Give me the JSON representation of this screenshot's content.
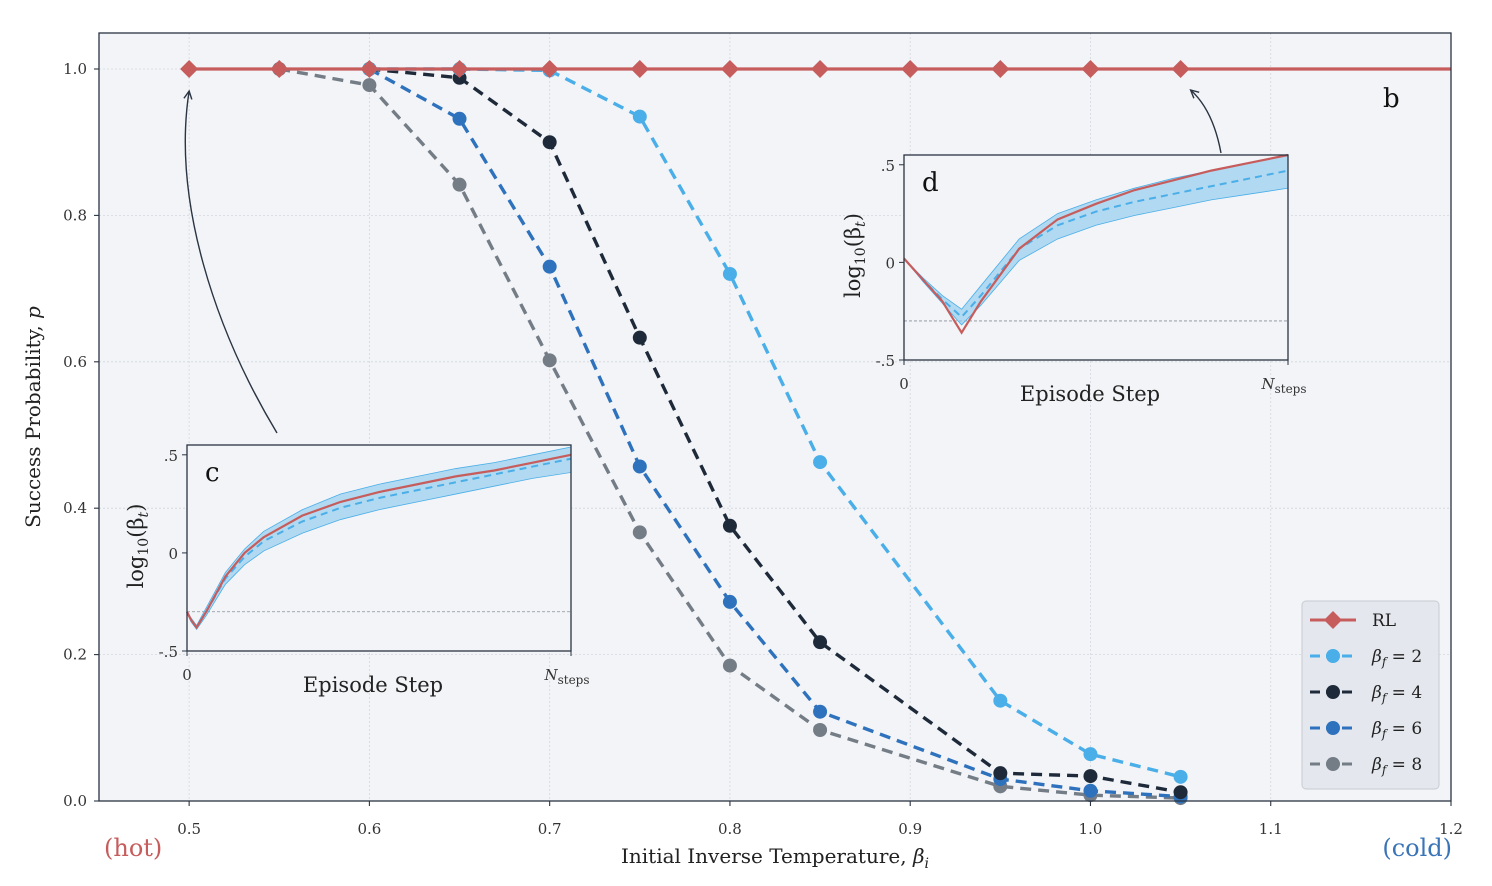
{
  "colors": {
    "RL": "#c65c5c",
    "b2": "#4aaee8",
    "b4": "#1e2a3a",
    "b6": "#2e72bd",
    "b8": "#747c86",
    "band": "#8dcbee",
    "hot": "#c65c5c",
    "cold": "#3a74b8",
    "plot_bg": "#f2f4f7"
  },
  "chart_data": [
    {
      "type": "line",
      "panel": "b",
      "xlabel": "Initial Inverse Temperature, βi",
      "xlabel_main": "Initial Inverse Temperature, ",
      "xlabel_symbol": "β",
      "xlabel_sub": "i",
      "ylabel": "Success Probability, p",
      "ylabel_main": "Success Probability, ",
      "ylabel_symbol": "p",
      "xlim": [
        0.45,
        1.2
      ],
      "ylim": [
        0.0,
        1.0
      ],
      "xticks": [
        0.5,
        0.6,
        0.7,
        0.8,
        0.9,
        1.0,
        1.1,
        1.2
      ],
      "xtick_labels": [
        "0.5",
        "0.6",
        "0.7",
        "0.8",
        "0.9",
        "1.0",
        "1.1",
        "1.2"
      ],
      "yticks": [
        0.0,
        0.2,
        0.4,
        0.6,
        0.8,
        1.0
      ],
      "ytick_labels": [
        "0.0",
        "0.2",
        "0.4",
        "0.6",
        "0.8",
        "1.0"
      ],
      "grid": true,
      "hot_label": "(hot)",
      "cold_label": "(cold)",
      "legend_position": "lower-right",
      "series": [
        {
          "name": "RL",
          "legend": "RL",
          "style": "solid",
          "marker": "diamond",
          "x": [
            0.5,
            0.55,
            0.6,
            0.65,
            0.7,
            0.75,
            0.8,
            0.85,
            0.9,
            0.95,
            1.0,
            1.05
          ],
          "y": [
            1.0,
            1.0,
            1.0,
            1.0,
            1.0,
            1.0,
            1.0,
            1.0,
            1.0,
            1.0,
            1.0,
            1.0
          ],
          "line_extends_to": 1.2
        },
        {
          "name": "b2",
          "legend": "βf = 2",
          "legend_symbol": "β",
          "legend_sub": "f",
          "legend_value": "= 2",
          "style": "dashed",
          "marker": "circle",
          "x": [
            0.6,
            0.65,
            0.7,
            0.75,
            0.8,
            0.85,
            0.95,
            1.0,
            1.05
          ],
          "y": [
            1.0,
            1.0,
            0.998,
            0.935,
            0.72,
            0.463,
            0.137,
            0.064,
            0.033
          ]
        },
        {
          "name": "b4",
          "legend": "βf = 4",
          "legend_symbol": "β",
          "legend_sub": "f",
          "legend_value": "= 4",
          "style": "dashed",
          "marker": "circle",
          "x": [
            0.6,
            0.65,
            0.7,
            0.75,
            0.8,
            0.85,
            0.95,
            1.0,
            1.05
          ],
          "y": [
            1.0,
            0.988,
            0.9,
            0.633,
            0.376,
            0.217,
            0.038,
            0.034,
            0.012
          ]
        },
        {
          "name": "b6",
          "legend": "βf = 6",
          "legend_symbol": "β",
          "legend_sub": "f",
          "legend_value": "= 6",
          "style": "dashed",
          "marker": "circle",
          "x": [
            0.6,
            0.65,
            0.7,
            0.75,
            0.8,
            0.85,
            0.95,
            1.0,
            1.05
          ],
          "y": [
            1.0,
            0.932,
            0.73,
            0.457,
            0.272,
            0.122,
            0.03,
            0.014,
            0.006
          ]
        },
        {
          "name": "b8",
          "legend": "βf = 8",
          "legend_symbol": "β",
          "legend_sub": "f",
          "legend_value": "= 8",
          "style": "dashed",
          "marker": "circle",
          "x": [
            0.55,
            0.6,
            0.65,
            0.7,
            0.75,
            0.8,
            0.85,
            0.95,
            1.0,
            1.05
          ],
          "y": [
            1.0,
            0.978,
            0.842,
            0.602,
            0.367,
            0.185,
            0.097,
            0.02,
            0.008,
            0.004
          ]
        }
      ]
    },
    {
      "type": "line",
      "panel": "c",
      "annotates_x": 0.5,
      "xlabel": "Episode Step",
      "ylabel": "log10(βt)",
      "ylabel_main": "log",
      "ylabel_sub": "10",
      "ylabel_arg": "(β",
      "ylabel_arg_sub": "t",
      "ylabel_close": ")",
      "xlim": [
        0,
        1
      ],
      "ylim": [
        -0.5,
        0.55
      ],
      "xtick_labels": [
        "0"
      ],
      "xtick_end_main": "N",
      "xtick_end_sub": "steps",
      "yticks": [
        -0.5,
        0,
        0.5
      ],
      "ytick_labels": [
        "-.5",
        "0",
        ".5"
      ],
      "reference_line_y": -0.3,
      "series": [
        {
          "name": "RL",
          "style": "solid",
          "x": [
            0,
            0.01,
            0.025,
            0.05,
            0.1,
            0.15,
            0.2,
            0.3,
            0.4,
            0.5,
            0.6,
            0.7,
            0.8,
            0.9,
            1.0
          ],
          "y": [
            -0.3,
            -0.34,
            -0.38,
            -0.3,
            -0.12,
            0.0,
            0.08,
            0.19,
            0.26,
            0.31,
            0.35,
            0.39,
            0.42,
            0.46,
            0.5
          ]
        },
        {
          "name": "mean",
          "style": "dashed",
          "x": [
            0,
            0.01,
            0.025,
            0.05,
            0.1,
            0.15,
            0.2,
            0.3,
            0.4,
            0.5,
            0.6,
            0.7,
            0.8,
            0.9,
            1.0
          ],
          "y": [
            -0.3,
            -0.34,
            -0.38,
            -0.3,
            -0.13,
            -0.02,
            0.06,
            0.16,
            0.23,
            0.28,
            0.32,
            0.36,
            0.4,
            0.44,
            0.48
          ]
        },
        {
          "name": "band_upper",
          "style": "band",
          "x": [
            0,
            0.01,
            0.025,
            0.05,
            0.1,
            0.15,
            0.2,
            0.3,
            0.4,
            0.5,
            0.6,
            0.7,
            0.8,
            0.9,
            1.0
          ],
          "y": [
            -0.3,
            -0.33,
            -0.37,
            -0.28,
            -0.1,
            0.02,
            0.11,
            0.22,
            0.3,
            0.35,
            0.39,
            0.43,
            0.46,
            0.5,
            0.54
          ]
        },
        {
          "name": "band_lower",
          "style": "band",
          "x": [
            0,
            0.01,
            0.025,
            0.05,
            0.1,
            0.15,
            0.2,
            0.3,
            0.4,
            0.5,
            0.6,
            0.7,
            0.8,
            0.9,
            1.0
          ],
          "y": [
            -0.3,
            -0.35,
            -0.39,
            -0.32,
            -0.16,
            -0.06,
            0.01,
            0.1,
            0.17,
            0.22,
            0.26,
            0.3,
            0.34,
            0.38,
            0.41
          ]
        }
      ]
    },
    {
      "type": "line",
      "panel": "d",
      "annotates_x": 1.05,
      "xlabel": "Episode Step",
      "ylabel": "log10(βt)",
      "ylabel_main": "log",
      "ylabel_sub": "10",
      "ylabel_arg": "(β",
      "ylabel_arg_sub": "t",
      "ylabel_close": ")",
      "xlim": [
        0,
        1
      ],
      "ylim": [
        -0.5,
        0.55
      ],
      "xtick_labels": [
        "0"
      ],
      "xtick_end_main": "N",
      "xtick_end_sub": "steps",
      "yticks": [
        -0.5,
        0,
        0.5
      ],
      "ytick_labels": [
        "-.5",
        "0",
        ".5"
      ],
      "reference_line_y": -0.3,
      "series": [
        {
          "name": "RL",
          "style": "solid",
          "x": [
            0,
            0.05,
            0.1,
            0.15,
            0.2,
            0.3,
            0.4,
            0.5,
            0.6,
            0.7,
            0.8,
            0.9,
            1.0
          ],
          "y": [
            0.02,
            -0.09,
            -0.2,
            -0.36,
            -0.2,
            0.07,
            0.22,
            0.3,
            0.37,
            0.42,
            0.47,
            0.51,
            0.55
          ]
        },
        {
          "name": "mean",
          "style": "dashed",
          "x": [
            0,
            0.05,
            0.1,
            0.15,
            0.2,
            0.3,
            0.4,
            0.5,
            0.6,
            0.7,
            0.8,
            0.9,
            1.0
          ],
          "y": [
            0.02,
            -0.09,
            -0.19,
            -0.28,
            -0.17,
            0.07,
            0.19,
            0.26,
            0.31,
            0.35,
            0.39,
            0.43,
            0.47
          ]
        },
        {
          "name": "band_upper",
          "style": "band",
          "x": [
            0,
            0.05,
            0.1,
            0.15,
            0.2,
            0.3,
            0.4,
            0.5,
            0.6,
            0.7,
            0.8,
            0.9,
            1.0
          ],
          "y": [
            0.02,
            -0.08,
            -0.17,
            -0.24,
            -0.12,
            0.12,
            0.25,
            0.32,
            0.38,
            0.43,
            0.47,
            0.51,
            0.55
          ]
        },
        {
          "name": "band_lower",
          "style": "band",
          "x": [
            0,
            0.05,
            0.1,
            0.15,
            0.2,
            0.3,
            0.4,
            0.5,
            0.6,
            0.7,
            0.8,
            0.9,
            1.0
          ],
          "y": [
            0.02,
            -0.1,
            -0.21,
            -0.32,
            -0.22,
            0.01,
            0.12,
            0.19,
            0.24,
            0.28,
            0.32,
            0.35,
            0.38
          ]
        }
      ]
    }
  ]
}
